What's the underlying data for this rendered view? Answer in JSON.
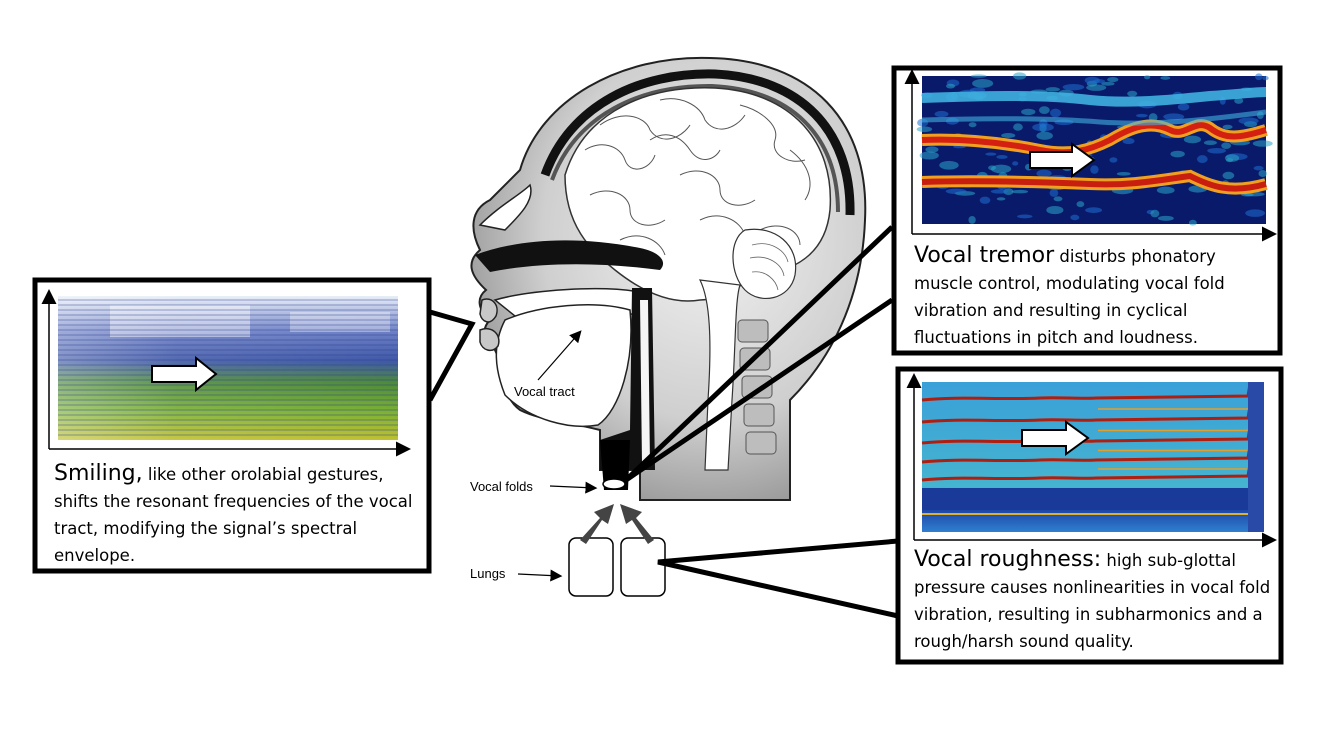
{
  "labels": {
    "vocal_tract": "Vocal tract",
    "vocal_folds": "Vocal folds",
    "lungs": "Lungs"
  },
  "panels": {
    "smiling": {
      "lead": "Smiling,",
      "text": " like other orolabial gestures, shifts the resonant frequencies of the vocal tract, modifying the signal’s spectral envelope."
    },
    "tremor": {
      "lead": "Vocal tremor",
      "text": " disturbs phonatory muscle control, modulating vocal fold vibration and resulting in cyclical fluctuations in pitch and loudness."
    },
    "roughness": {
      "lead": "Vocal roughness:",
      "text": " high sub-glottal pressure causes nonlinearities in vocal fold vibration, resulting in subharmonics and a rough/harsh sound quality."
    }
  },
  "colors": {
    "outline": "#000000",
    "spectrogram_dark": "#0a1a6b",
    "spectrogram_red": "#d42010",
    "smiling_blue": "#4a5fb0",
    "smiling_green": "#58a030"
  }
}
